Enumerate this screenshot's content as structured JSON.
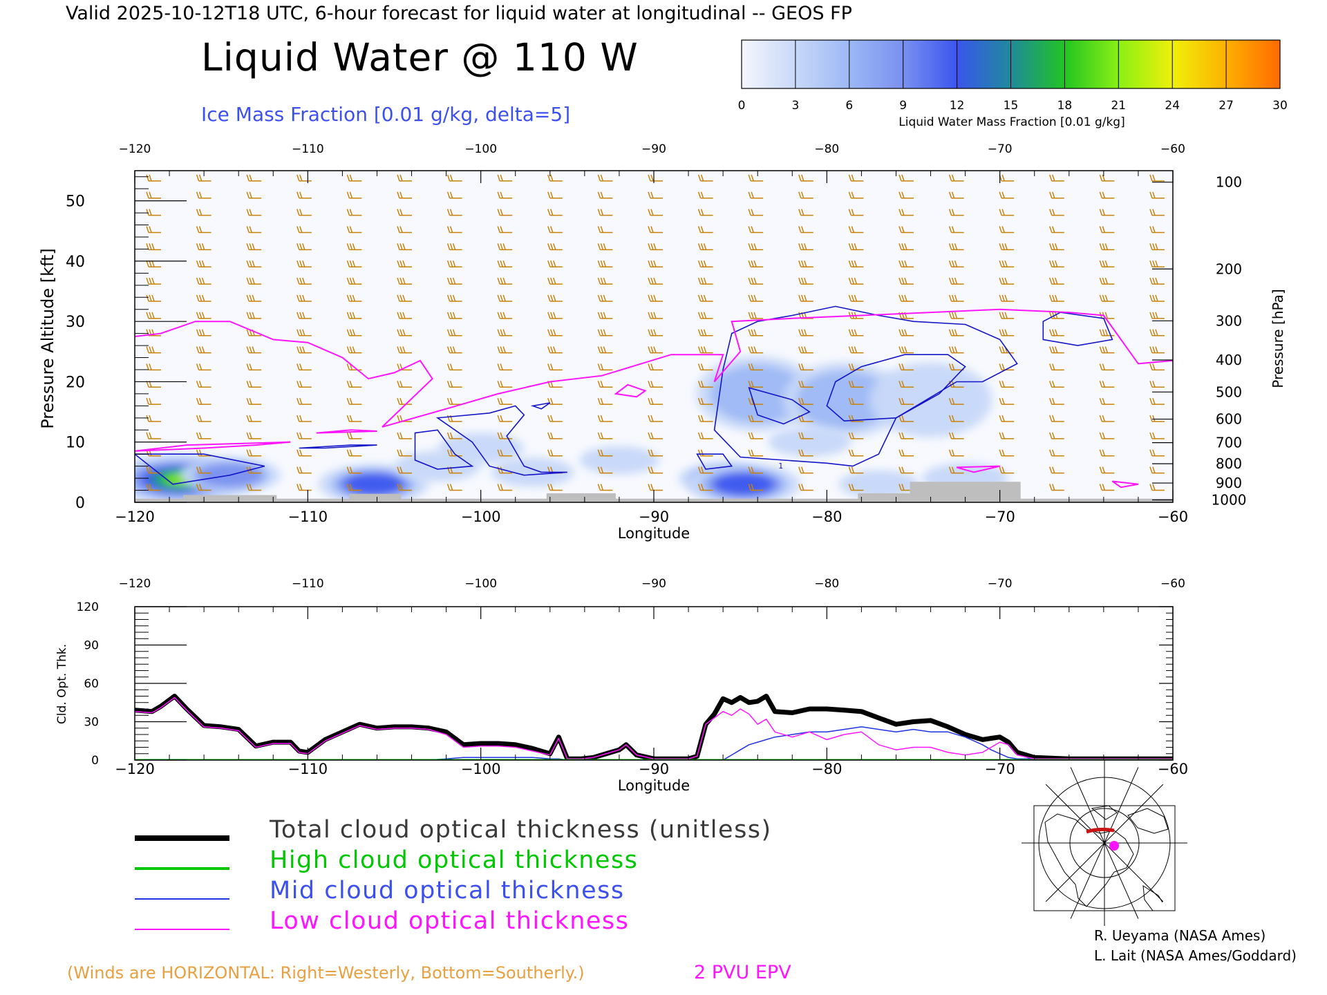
{
  "header": {
    "valid_line": "Valid 2025-10-12T18 UTC, 6-hour forecast for liquid water at longitudinal -- GEOS FP",
    "main_title": "Liquid Water @ 110 W",
    "ice_label": "Ice Mass Fraction [0.01 g/kg, delta=5]"
  },
  "colorbar": {
    "ticks": [
      "0",
      "3",
      "6",
      "9",
      "12",
      "15",
      "18",
      "21",
      "24",
      "27",
      "30"
    ],
    "label": "Liquid Water Mass Fraction [0.01 g/kg]",
    "colors": [
      "#f4f6fd",
      "#c8d8f8",
      "#9cb8f5",
      "#7a90f0",
      "#3a55ee",
      "#1f8a9a",
      "#22c422",
      "#8af014",
      "#eef00a",
      "#ffb000",
      "#ff6a00"
    ]
  },
  "colors": {
    "ice_contour": "#1414c8",
    "epv": "#ff14ff",
    "wind_barbs": "#c8820a",
    "terrain": "#bebebe",
    "orange_text": "#e8a040",
    "blue_text": "#3c50f0",
    "total": "#000000",
    "high": "#00c800",
    "mid": "#1e32e6",
    "low": "#ff14ff"
  },
  "chart_data": [
    {
      "type": "heatmap",
      "title": "Liquid Water @ 110 W",
      "xlabel": "Longitude",
      "ylabel": "Pressure Altitude [kft]",
      "ylabel_right": "Pressure [hPa]",
      "xlim": [
        -120,
        -60
      ],
      "ylim": [
        0,
        55
      ],
      "x_ticks": [
        "−120",
        "−110",
        "−100",
        "−90",
        "−80",
        "−70",
        "−60"
      ],
      "x_tick_values": [
        -120,
        -110,
        -100,
        -90,
        -80,
        -70,
        -60
      ],
      "y_ticks": [
        "0",
        "10",
        "20",
        "30",
        "40",
        "50"
      ],
      "y_tick_values": [
        0,
        10,
        20,
        30,
        40,
        50
      ],
      "pressure_ticks": [
        "100",
        "200",
        "300",
        "400",
        "500",
        "600",
        "700",
        "800",
        "900",
        "1000"
      ],
      "pressure_tick_altitudes_kft": [
        53.1,
        38.7,
        30.1,
        23.6,
        18.3,
        13.8,
        9.9,
        6.4,
        3.2,
        0.4
      ],
      "liquid_water_blobs": [
        {
          "lon": -117.5,
          "alt": 3.8,
          "peak": 22
        },
        {
          "lon": -114.5,
          "alt": 4.5,
          "peak": 10
        },
        {
          "lon": -106.2,
          "alt": 3.0,
          "peak": 13
        },
        {
          "lon": -102.5,
          "alt": 6.0,
          "peak": 5
        },
        {
          "lon": -100.0,
          "alt": 9.0,
          "peak": 5
        },
        {
          "lon": -97.0,
          "alt": 5.0,
          "peak": 4
        },
        {
          "lon": -92.0,
          "alt": 7.0,
          "peak": 3
        },
        {
          "lon": -86.0,
          "alt": 4.0,
          "peak": 6
        },
        {
          "lon": -84.8,
          "alt": 3.0,
          "peak": 14
        },
        {
          "lon": -84.0,
          "alt": 18.0,
          "peak": 6
        },
        {
          "lon": -79.0,
          "alt": 17.0,
          "peak": 6
        },
        {
          "lon": -74.0,
          "alt": 17.0,
          "peak": 5
        },
        {
          "lon": -81.0,
          "alt": 10.0,
          "peak": 4
        },
        {
          "lon": -72.0,
          "alt": 4.0,
          "peak": 5
        },
        {
          "lon": -77.0,
          "alt": 3.0,
          "peak": 3
        }
      ],
      "ice_contour_label": "1",
      "terrain_kft": [
        {
          "lon": -120,
          "alt": 0.6
        },
        {
          "lon": -117.2,
          "alt": 0.6
        },
        {
          "lon": -117.2,
          "alt": 1.2
        },
        {
          "lon": -111.8,
          "alt": 1.2
        },
        {
          "lon": -111.8,
          "alt": 0.6
        },
        {
          "lon": -107.6,
          "alt": 0.6
        },
        {
          "lon": -107.6,
          "alt": 1.4
        },
        {
          "lon": -104.6,
          "alt": 1.4
        },
        {
          "lon": -104.6,
          "alt": 0.6
        },
        {
          "lon": -96.2,
          "alt": 0.6
        },
        {
          "lon": -96.2,
          "alt": 1.5
        },
        {
          "lon": -92.2,
          "alt": 1.5
        },
        {
          "lon": -92.2,
          "alt": 0.6
        },
        {
          "lon": -78.2,
          "alt": 0.6
        },
        {
          "lon": -78.2,
          "alt": 1.5
        },
        {
          "lon": -75.2,
          "alt": 1.5
        },
        {
          "lon": -75.2,
          "alt": 3.4
        },
        {
          "lon": -68.8,
          "alt": 3.4
        },
        {
          "lon": -68.8,
          "alt": 0.6
        },
        {
          "lon": -60,
          "alt": 0.6
        }
      ],
      "epv_2pvu_kft": [
        {
          "lon": -120,
          "alt": 27.5
        },
        {
          "lon": -118.5,
          "alt": 28.0
        },
        {
          "lon": -116.5,
          "alt": 30.0
        },
        {
          "lon": -114.5,
          "alt": 30.0
        },
        {
          "lon": -112.0,
          "alt": 27.0
        },
        {
          "lon": -110.0,
          "alt": 26.5
        },
        {
          "lon": -108.0,
          "alt": 24.0
        },
        {
          "lon": -106.5,
          "alt": 20.5
        },
        {
          "lon": -105.0,
          "alt": 21.5
        },
        {
          "lon": -103.5,
          "alt": 23.5
        },
        {
          "lon": -102.8,
          "alt": 20.5
        },
        {
          "lon": -105.7,
          "alt": 12.5
        },
        {
          "lon": -102.0,
          "alt": 15.5
        },
        {
          "lon": -99.0,
          "alt": 18.0
        },
        {
          "lon": -96.0,
          "alt": 20.0
        },
        {
          "lon": -93.0,
          "alt": 21.0
        },
        {
          "lon": -89.0,
          "alt": 24.5
        },
        {
          "lon": -86.0,
          "alt": 24.5
        },
        {
          "lon": -86.5,
          "alt": 20.0
        },
        {
          "lon": -85.0,
          "alt": 25.0
        },
        {
          "lon": -85.5,
          "alt": 30.0
        },
        {
          "lon": -82.0,
          "alt": 30.5
        },
        {
          "lon": -78.0,
          "alt": 31.0
        },
        {
          "lon": -74.0,
          "alt": 31.5
        },
        {
          "lon": -70.0,
          "alt": 32.0
        },
        {
          "lon": -66.0,
          "alt": 31.5
        },
        {
          "lon": -64.0,
          "alt": 31.0
        },
        {
          "lon": -62.0,
          "alt": 23.0
        },
        {
          "lon": -60.0,
          "alt": 23.5
        }
      ]
    },
    {
      "type": "line",
      "xlabel": "Longitude",
      "ylabel": "Cld. Opt. Thk.",
      "xlim": [
        -120,
        -60
      ],
      "ylim": [
        0,
        120
      ],
      "x_ticks": [
        "−120",
        "−110",
        "−100",
        "−90",
        "−80",
        "−70",
        "−60"
      ],
      "x_tick_values": [
        -120,
        -110,
        -100,
        -90,
        -80,
        -70,
        -60
      ],
      "y_ticks": [
        "0",
        "30",
        "60",
        "90",
        "120"
      ],
      "y_tick_values": [
        0,
        30,
        60,
        90,
        120
      ],
      "x": [
        -120,
        -119,
        -118.5,
        -117.7,
        -117,
        -116,
        -115,
        -114,
        -113,
        -112,
        -111,
        -110.5,
        -110,
        -109,
        -108,
        -107,
        -106,
        -105,
        -104,
        -103,
        -102,
        -101,
        -100,
        -99,
        -98,
        -97,
        -96,
        -95.5,
        -95,
        -94.2,
        -93.5,
        -93,
        -92,
        -91.6,
        -91,
        -90,
        -89,
        -88,
        -87.5,
        -87,
        -86.5,
        -86,
        -85.5,
        -85,
        -84.5,
        -84,
        -83.5,
        -83,
        -82,
        -81,
        -80,
        -79,
        -78,
        -77,
        -76,
        -75,
        -74,
        -73,
        -72,
        -71,
        -70.5,
        -70,
        -69.5,
        -69,
        -68,
        -66,
        -64,
        -62,
        -60
      ],
      "series": [
        {
          "name": "Total cloud optical thickness (unitless)",
          "color": "#000000",
          "width": 7,
          "values": [
            39,
            38,
            42,
            50,
            40,
            27,
            26,
            24,
            11,
            14,
            14,
            7,
            6,
            16,
            22,
            28,
            25,
            26,
            26,
            25,
            22,
            12,
            13,
            13,
            12,
            9,
            5,
            18,
            1,
            1,
            2,
            4,
            8,
            12,
            4,
            1,
            1,
            1,
            3,
            28,
            36,
            48,
            45,
            49,
            45,
            46,
            50,
            38,
            37,
            40,
            40,
            39,
            38,
            33,
            28,
            30,
            31,
            26,
            20,
            16,
            17,
            18,
            14,
            6,
            2,
            1,
            1,
            1,
            1
          ]
        },
        {
          "name": "High cloud optical thickness",
          "color": "#00c800",
          "width": 3,
          "values": [
            0,
            0,
            0,
            0,
            0,
            0,
            0,
            0,
            0,
            0,
            0,
            0,
            0,
            0,
            0,
            0,
            0,
            0,
            0,
            0,
            0,
            0,
            0,
            0,
            0,
            0,
            0,
            0,
            0,
            0,
            0,
            0,
            0,
            0,
            0,
            0,
            0,
            0,
            0,
            0,
            0,
            0,
            0,
            0,
            0,
            0,
            0,
            0,
            0,
            0,
            0,
            0,
            0,
            0,
            0,
            0,
            0,
            0,
            0,
            0,
            0,
            0,
            0,
            0,
            0,
            0,
            0,
            0,
            0
          ]
        },
        {
          "name": "Mid cloud optical thickness",
          "color": "#1e32e6",
          "width": 1.5,
          "values": [
            0,
            0,
            0,
            0,
            0,
            0,
            0,
            0,
            0,
            0,
            0,
            0,
            0,
            0,
            0,
            0,
            0,
            0,
            0,
            0,
            1,
            2,
            2,
            2,
            2,
            2,
            1,
            1,
            0,
            0,
            0,
            0,
            0,
            0,
            0,
            0,
            0,
            0,
            0,
            0,
            0,
            0,
            4,
            8,
            12,
            14,
            16,
            18,
            20,
            22,
            22,
            24,
            26,
            24,
            22,
            24,
            22,
            22,
            18,
            12,
            8,
            5,
            2,
            1,
            1,
            1,
            1,
            1,
            1
          ]
        },
        {
          "name": "Low cloud optical thickness",
          "color": "#ff14ff",
          "width": 1.5,
          "values": [
            38,
            37,
            41,
            49,
            39,
            26,
            25,
            23,
            10,
            13,
            13,
            6,
            5,
            15,
            21,
            27,
            24,
            25,
            25,
            24,
            20,
            10,
            11,
            11,
            10,
            7,
            4,
            17,
            1,
            1,
            2,
            4,
            8,
            12,
            4,
            1,
            1,
            1,
            3,
            28,
            33,
            38,
            35,
            40,
            36,
            28,
            32,
            22,
            18,
            22,
            16,
            20,
            22,
            12,
            8,
            10,
            10,
            6,
            4,
            6,
            10,
            14,
            12,
            4,
            1,
            1,
            1,
            1,
            1
          ]
        }
      ]
    }
  ],
  "legend": {
    "items": [
      {
        "label": "Total cloud optical thickness (unitless)",
        "color": "#000000",
        "text_color": "#3a3a3a"
      },
      {
        "label": "High cloud optical thickness",
        "color": "#00c800",
        "text_color": "#00c800"
      },
      {
        "label": "Mid cloud optical thickness",
        "color": "#1e32e6",
        "text_color": "#3c50f0"
      },
      {
        "label": "Low cloud optical thickness",
        "color": "#ff14ff",
        "text_color": "#ff14ff"
      }
    ]
  },
  "credits": {
    "line1": "R. Ueyama (NASA Ames)",
    "line2": "L. Lait (NASA Ames/Goddard)"
  },
  "footer": {
    "winds_note": "(Winds are HORIZONTAL: Right=Westerly, Bottom=Southerly.)",
    "epv_label": "2 PVU EPV"
  }
}
